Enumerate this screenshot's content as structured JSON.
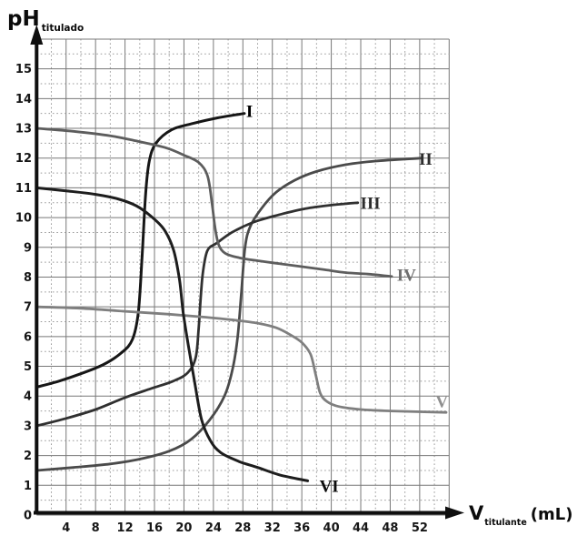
{
  "chart_data": {
    "type": "line",
    "title": "",
    "ylabel": {
      "symbol": "pH",
      "subscript": "titulado"
    },
    "xlabel": {
      "symbol": "V",
      "subscript": "titulante",
      "unit": "(mL)"
    },
    "xlim": [
      0,
      56
    ],
    "ylim": [
      0,
      16
    ],
    "x_major_step": 4,
    "x_minor_step": 2,
    "y_major_step": 1,
    "y_minor_step": 0.5,
    "x_tick_labels": [
      4,
      8,
      12,
      16,
      20,
      24,
      28,
      32,
      36,
      40,
      44,
      48,
      52
    ],
    "y_tick_labels": [
      0,
      1,
      2,
      3,
      4,
      5,
      6,
      7,
      8,
      9,
      10,
      11,
      12,
      13,
      14,
      15
    ],
    "grid": {
      "on": true,
      "major_color": "#787878",
      "minor_color": "#9b9b9b",
      "minor_dash": "1.6 2.8"
    },
    "axis_color": "#0f0f0f",
    "tick_label_color": "#161616",
    "legend_position": "curve-end-labels",
    "series": [
      {
        "name": "I",
        "label": "I",
        "color": "#161616",
        "label_color": "#000000",
        "stroke_width": 3,
        "label_pos": [
          28.9,
          13.58
        ],
        "points": [
          [
            0,
            4.3
          ],
          [
            3,
            4.5
          ],
          [
            6,
            4.75
          ],
          [
            9,
            5.05
          ],
          [
            11.5,
            5.45
          ],
          [
            13,
            5.9
          ],
          [
            13.8,
            6.8
          ],
          [
            14.3,
            8.6
          ],
          [
            14.8,
            10.8
          ],
          [
            15.3,
            11.9
          ],
          [
            16.2,
            12.5
          ],
          [
            18.3,
            12.95
          ],
          [
            21,
            13.15
          ],
          [
            24.5,
            13.35
          ],
          [
            28.2,
            13.5
          ]
        ]
      },
      {
        "name": "II",
        "label": "II",
        "color": "#4a4a4a",
        "label_color": "#2d2d2d",
        "stroke_width": 2.8,
        "label_pos": [
          52.8,
          11.97
        ],
        "points": [
          [
            0,
            1.5
          ],
          [
            5,
            1.6
          ],
          [
            10,
            1.72
          ],
          [
            14,
            1.88
          ],
          [
            18,
            2.15
          ],
          [
            21,
            2.55
          ],
          [
            23.5,
            3.2
          ],
          [
            25.5,
            4.0
          ],
          [
            26.6,
            4.9
          ],
          [
            27.3,
            6.0
          ],
          [
            27.8,
            7.5
          ],
          [
            28.3,
            9.0
          ],
          [
            29,
            9.7
          ],
          [
            30.5,
            10.3
          ],
          [
            32.5,
            10.85
          ],
          [
            35,
            11.25
          ],
          [
            38,
            11.55
          ],
          [
            42,
            11.78
          ],
          [
            46,
            11.9
          ],
          [
            52.3,
            12.0
          ]
        ]
      },
      {
        "name": "III",
        "label": "III",
        "color": "#303030",
        "label_color": "#2d2d2d",
        "stroke_width": 2.8,
        "label_pos": [
          45.3,
          10.5
        ],
        "points": [
          [
            0,
            3.0
          ],
          [
            4,
            3.25
          ],
          [
            8,
            3.55
          ],
          [
            12,
            3.95
          ],
          [
            15.5,
            4.25
          ],
          [
            18.5,
            4.5
          ],
          [
            20.5,
            4.78
          ],
          [
            21.6,
            5.3
          ],
          [
            22.0,
            6.3
          ],
          [
            22.3,
            7.4
          ],
          [
            22.6,
            8.2
          ],
          [
            23.2,
            8.9
          ],
          [
            24.5,
            9.15
          ],
          [
            26.5,
            9.5
          ],
          [
            29.5,
            9.85
          ],
          [
            33,
            10.1
          ],
          [
            36.5,
            10.3
          ],
          [
            40,
            10.42
          ],
          [
            43.6,
            10.5
          ]
        ]
      },
      {
        "name": "IV",
        "label": "IV",
        "color": "#5d5d5d",
        "label_color": "#707070",
        "stroke_width": 2.8,
        "label_pos": [
          50.2,
          8.08
        ],
        "points": [
          [
            0,
            13.0
          ],
          [
            5,
            12.9
          ],
          [
            10,
            12.75
          ],
          [
            14,
            12.55
          ],
          [
            17.5,
            12.35
          ],
          [
            20,
            12.1
          ],
          [
            22,
            11.85
          ],
          [
            23.2,
            11.4
          ],
          [
            23.8,
            10.5
          ],
          [
            24.2,
            9.7
          ],
          [
            24.7,
            9.1
          ],
          [
            25.6,
            8.8
          ],
          [
            27.5,
            8.65
          ],
          [
            30,
            8.55
          ],
          [
            33,
            8.45
          ],
          [
            36,
            8.35
          ],
          [
            39,
            8.25
          ],
          [
            42,
            8.15
          ],
          [
            45,
            8.1
          ],
          [
            48.2,
            8.02
          ]
        ]
      },
      {
        "name": "V",
        "label": "V",
        "color": "#7f7f7f",
        "label_color": "#8f8f8f",
        "stroke_width": 2.8,
        "label_pos": [
          55.0,
          3.82
        ],
        "points": [
          [
            0,
            7.0
          ],
          [
            6,
            6.95
          ],
          [
            12,
            6.85
          ],
          [
            18,
            6.75
          ],
          [
            23,
            6.65
          ],
          [
            27,
            6.55
          ],
          [
            30,
            6.45
          ],
          [
            32.5,
            6.3
          ],
          [
            34.5,
            6.05
          ],
          [
            36,
            5.8
          ],
          [
            37.2,
            5.4
          ],
          [
            37.9,
            4.7
          ],
          [
            38.5,
            4.1
          ],
          [
            39.4,
            3.82
          ],
          [
            41,
            3.65
          ],
          [
            44,
            3.55
          ],
          [
            48,
            3.5
          ],
          [
            55.6,
            3.45
          ]
        ]
      },
      {
        "name": "VI",
        "label": "VI",
        "color": "#1d1d1d",
        "label_color": "#0d0d0d",
        "stroke_width": 3,
        "label_pos": [
          39.7,
          0.98
        ],
        "points": [
          [
            0,
            11.0
          ],
          [
            4,
            10.9
          ],
          [
            8,
            10.78
          ],
          [
            11,
            10.63
          ],
          [
            13.5,
            10.4
          ],
          [
            15.5,
            10.05
          ],
          [
            17.3,
            9.6
          ],
          [
            18.6,
            8.9
          ],
          [
            19.4,
            7.9
          ],
          [
            19.9,
            6.8
          ],
          [
            20.6,
            5.7
          ],
          [
            21.5,
            4.4
          ],
          [
            22.4,
            3.2
          ],
          [
            23.6,
            2.5
          ],
          [
            25,
            2.1
          ],
          [
            27.5,
            1.8
          ],
          [
            30,
            1.6
          ],
          [
            33,
            1.35
          ],
          [
            36.8,
            1.15
          ]
        ]
      }
    ]
  }
}
